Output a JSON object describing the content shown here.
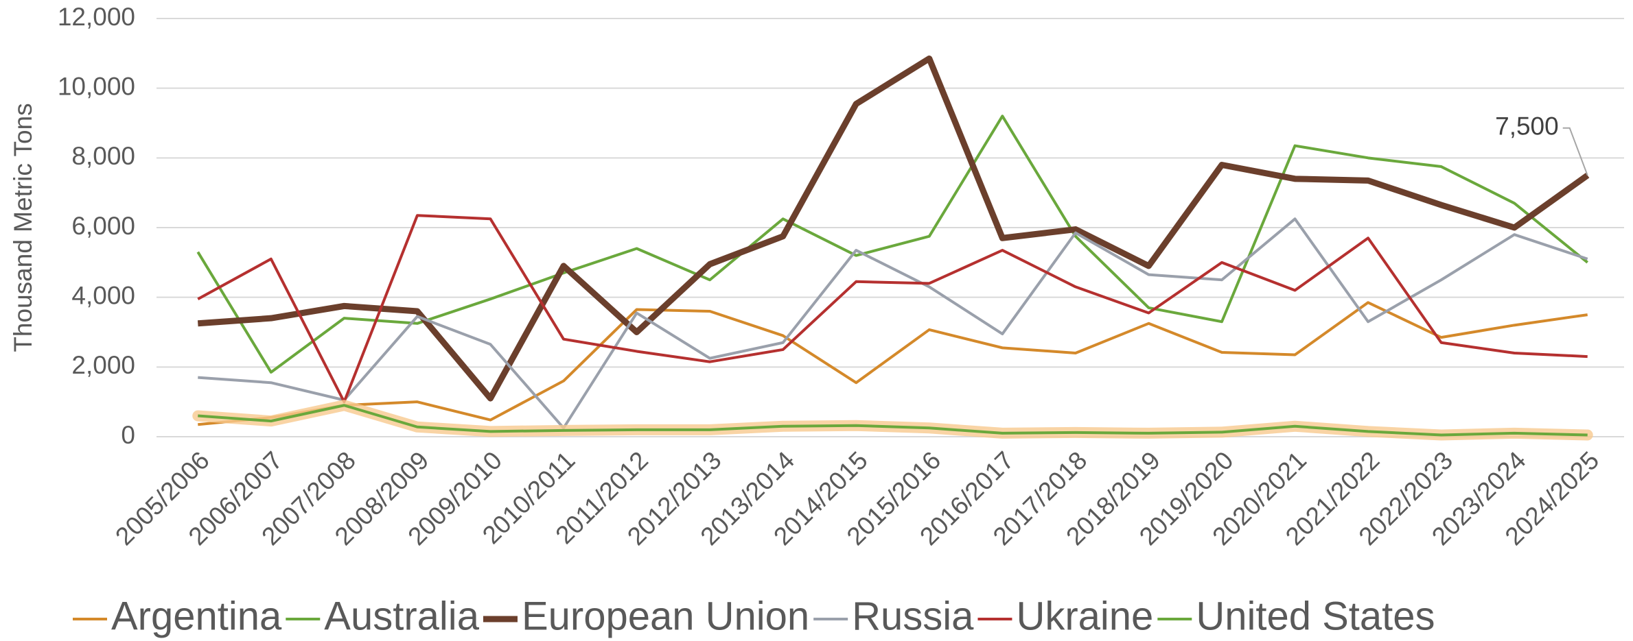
{
  "chart_data": {
    "type": "line",
    "ylabel": "Thousand Metric Tons",
    "categories": [
      "2005/2006",
      "2006/2007",
      "2007/2008",
      "2008/2009",
      "2009/2010",
      "2010/2011",
      "2011/2012",
      "2012/2013",
      "2013/2014",
      "2014/2015",
      "2015/2016",
      "2016/2017",
      "2017/2018",
      "2018/2019",
      "2019/2020",
      "2020/2021",
      "2021/2022",
      "2022/2023",
      "2023/2024",
      "2024/2025"
    ],
    "series": [
      {
        "name": "Argentina",
        "color": "#d4892a",
        "values": [
          350,
          550,
          900,
          1000,
          480,
          1600,
          3650,
          3600,
          2900,
          1550,
          3070,
          2550,
          2400,
          3250,
          2420,
          2350,
          3850,
          2850,
          3200,
          3500
        ]
      },
      {
        "name": "Australia",
        "color": "#6aa83c",
        "values": [
          5300,
          1850,
          3400,
          3250,
          3950,
          4700,
          5400,
          4500,
          6250,
          5200,
          5750,
          9200,
          5750,
          3700,
          3300,
          8350,
          8000,
          7750,
          6700,
          5000
        ]
      },
      {
        "name": "European Union",
        "color": "#6b3f2c",
        "emphasis": true,
        "values": [
          3250,
          3400,
          3750,
          3600,
          1100,
          4900,
          3000,
          4950,
          5750,
          9550,
          10850,
          5700,
          5950,
          4900,
          7800,
          7400,
          7350,
          6650,
          6000,
          7500
        ]
      },
      {
        "name": "Russia",
        "color": "#9aa0ab",
        "values": [
          1700,
          1550,
          1050,
          3450,
          2650,
          250,
          3550,
          2250,
          2700,
          5350,
          4300,
          2950,
          5850,
          4650,
          4500,
          6250,
          3300,
          4500,
          5800,
          5100
        ]
      },
      {
        "name": "Ukraine",
        "color": "#b5302f",
        "values": [
          3950,
          5100,
          1000,
          6350,
          6250,
          2800,
          2450,
          2150,
          2500,
          4450,
          4400,
          5350,
          4300,
          3550,
          5000,
          4200,
          5700,
          2700,
          2400,
          2300
        ]
      },
      {
        "name": "United States",
        "color": "#6aa83c",
        "glow": "#f7c98e",
        "values": [
          600,
          450,
          900,
          280,
          150,
          180,
          200,
          200,
          300,
          320,
          250,
          100,
          120,
          100,
          130,
          300,
          150,
          50,
          100,
          50
        ]
      }
    ],
    "annotations": [
      {
        "text": "7,500",
        "series": 2,
        "index": 19
      }
    ],
    "ylim": [
      0,
      12000
    ],
    "yticks": [
      0,
      {
        "value": 2000,
        "label": "2,000"
      },
      {
        "value": 4000,
        "label": "4,000"
      },
      {
        "value": 6000,
        "label": "6,000"
      },
      {
        "value": 8000,
        "label": "8,000"
      },
      {
        "value": 10000,
        "label": "10,000"
      },
      {
        "value": 12000,
        "label": "12,000"
      }
    ],
    "grid": true,
    "legend": "bottom"
  }
}
